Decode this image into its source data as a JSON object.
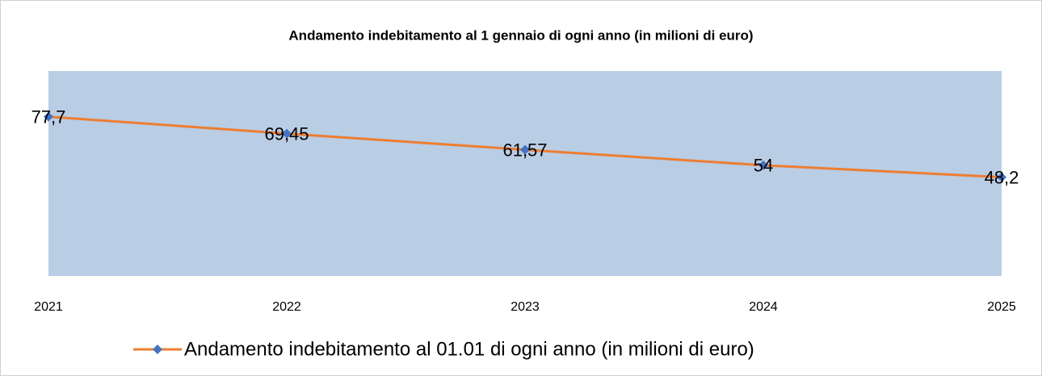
{
  "chart_data": {
    "type": "line",
    "title": "Andamento indebitamento al 1 gennaio di ogni anno (in milioni di euro)",
    "categories": [
      "2021",
      "2022",
      "2023",
      "2024",
      "2025"
    ],
    "series": [
      {
        "name": "Andamento indebitamento al 01.01 di ogni anno (in milioni di euro)",
        "color": "#ed7d31",
        "marker_color": "#4472c4",
        "values": [
          77.7,
          69.45,
          61.57,
          54,
          48.2
        ],
        "value_labels": [
          "77,7",
          "69,45",
          "61,57",
          "54",
          "48,2"
        ]
      }
    ],
    "ylim": [
      0,
      100
    ],
    "plot_background": "#b9cde5",
    "legend": "bottom"
  }
}
